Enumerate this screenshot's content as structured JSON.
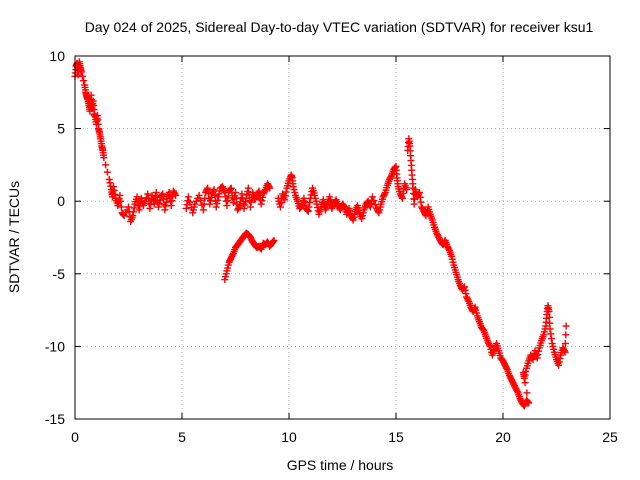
{
  "chart_data": {
    "type": "scatter",
    "title": "Day 024 of 2025, Sidereal Day-to-day VTEC variation (SDTVAR) for receiver ksu1",
    "xlabel": "GPS time / hours",
    "ylabel": "SDTVAR / TECUs",
    "xlim": [
      0,
      25
    ],
    "ylim": [
      -15,
      10
    ],
    "xticks": [
      0,
      5,
      10,
      15,
      20,
      25
    ],
    "yticks": [
      10,
      5,
      0,
      -5,
      -10,
      -15
    ],
    "grid": true,
    "marker": "+",
    "series": [
      {
        "name": "SDTVAR",
        "color": "#ff0000",
        "points": [
          [
            0.0,
            8.6
          ],
          [
            0.05,
            9.3
          ],
          [
            0.1,
            9.5
          ],
          [
            0.15,
            8.7
          ],
          [
            0.2,
            9.6
          ],
          [
            0.25,
            9.2
          ],
          [
            0.3,
            8.9
          ],
          [
            0.45,
            8.0
          ],
          [
            0.5,
            7.5
          ],
          [
            0.55,
            7.2
          ],
          [
            0.6,
            7.0
          ],
          [
            0.65,
            6.6
          ],
          [
            0.7,
            6.2
          ],
          [
            0.75,
            7.3
          ],
          [
            0.8,
            6.4
          ],
          [
            0.85,
            6.9
          ],
          [
            0.9,
            6.0
          ],
          [
            0.95,
            5.8
          ],
          [
            1.0,
            5.3
          ],
          [
            1.05,
            5.9
          ],
          [
            1.1,
            5.0
          ],
          [
            1.15,
            4.7
          ],
          [
            1.2,
            4.3
          ],
          [
            1.25,
            3.8
          ],
          [
            1.3,
            3.5
          ],
          [
            1.35,
            3.0
          ],
          [
            1.6,
            1.5
          ],
          [
            1.7,
            0.8
          ],
          [
            1.75,
            0.3
          ],
          [
            1.8,
            1.0
          ],
          [
            1.9,
            0.2
          ],
          [
            2.0,
            -0.3
          ],
          [
            2.1,
            0.4
          ],
          [
            2.2,
            -0.8
          ],
          [
            2.3,
            -1.0
          ],
          [
            2.5,
            -0.4
          ],
          [
            2.6,
            -1.4
          ],
          [
            2.7,
            -1.0
          ],
          [
            2.8,
            -0.2
          ],
          [
            2.9,
            0.3
          ],
          [
            3.0,
            -0.6
          ],
          [
            3.1,
            0.2
          ],
          [
            3.2,
            -0.3
          ],
          [
            3.4,
            0.5
          ],
          [
            3.5,
            -0.5
          ],
          [
            3.6,
            0.4
          ],
          [
            3.7,
            -0.2
          ],
          [
            3.8,
            0.6
          ],
          [
            3.9,
            -0.4
          ],
          [
            4.0,
            0.3
          ],
          [
            4.1,
            0.5
          ],
          [
            4.2,
            -0.6
          ],
          [
            4.3,
            0.2
          ],
          [
            4.4,
            0.6
          ],
          [
            4.5,
            -0.3
          ],
          [
            4.6,
            0.7
          ],
          [
            4.7,
            0.4
          ],
          [
            5.2,
            -0.5
          ],
          [
            5.3,
            0.3
          ],
          [
            5.5,
            -0.8
          ],
          [
            5.6,
            -0.2
          ],
          [
            5.8,
            0.4
          ],
          [
            6.0,
            -0.6
          ],
          [
            6.1,
            0.6
          ],
          [
            6.2,
            0.9
          ],
          [
            6.3,
            -0.2
          ],
          [
            6.4,
            0.5
          ],
          [
            6.5,
            0.8
          ],
          [
            6.6,
            -0.4
          ],
          [
            6.7,
            0.3
          ],
          [
            6.8,
            0.9
          ],
          [
            6.9,
            1.0
          ],
          [
            7.0,
            0.6
          ],
          [
            7.1,
            -0.3
          ],
          [
            7.2,
            0.7
          ],
          [
            7.3,
            0.9
          ],
          [
            7.4,
            -0.1
          ],
          [
            7.5,
            0.6
          ],
          [
            7.6,
            -0.6
          ],
          [
            7.7,
            -0.3
          ],
          [
            7.8,
            0.5
          ],
          [
            7.9,
            -0.5
          ],
          [
            8.0,
            0.2
          ],
          [
            8.1,
            0.9
          ],
          [
            8.2,
            -0.4
          ],
          [
            8.3,
            0.6
          ],
          [
            8.4,
            0.1
          ],
          [
            8.5,
            0.4
          ],
          [
            8.6,
            0.7
          ],
          [
            8.7,
            -0.2
          ],
          [
            8.8,
            0.5
          ],
          [
            8.9,
            0.8
          ],
          [
            9.0,
            1.2
          ],
          [
            9.1,
            0.9
          ],
          [
            7.0,
            -5.4
          ],
          [
            7.1,
            -4.8
          ],
          [
            7.2,
            -4.2
          ],
          [
            7.3,
            -3.9
          ],
          [
            7.4,
            -3.6
          ],
          [
            7.5,
            -3.2
          ],
          [
            7.6,
            -3.0
          ],
          [
            7.7,
            -2.8
          ],
          [
            7.8,
            -2.6
          ],
          [
            7.9,
            -2.4
          ],
          [
            8.0,
            -2.2
          ],
          [
            8.1,
            -2.3
          ],
          [
            8.2,
            -2.5
          ],
          [
            8.3,
            -2.8
          ],
          [
            8.4,
            -3.0
          ],
          [
            8.5,
            -3.2
          ],
          [
            8.6,
            -3.1
          ],
          [
            8.7,
            -3.3
          ],
          [
            8.8,
            -2.9
          ],
          [
            8.9,
            -3.0
          ],
          [
            9.0,
            -2.8
          ],
          [
            9.1,
            -3.1
          ],
          [
            9.2,
            -2.9
          ],
          [
            9.3,
            -2.7
          ],
          [
            9.5,
            0.2
          ],
          [
            9.6,
            -0.4
          ],
          [
            9.7,
            0.5
          ],
          [
            9.8,
            0.1
          ],
          [
            9.9,
            0.9
          ],
          [
            10.0,
            1.4
          ],
          [
            10.1,
            1.8
          ],
          [
            10.15,
            1.6
          ],
          [
            10.2,
            1.0
          ],
          [
            10.3,
            0.4
          ],
          [
            10.4,
            0.0
          ],
          [
            10.5,
            -0.5
          ],
          [
            10.6,
            -0.3
          ],
          [
            10.7,
            0.2
          ],
          [
            10.8,
            -0.5
          ],
          [
            10.9,
            -0.7
          ],
          [
            11.0,
            0.2
          ],
          [
            11.1,
            0.9
          ],
          [
            11.2,
            0.4
          ],
          [
            11.3,
            -0.2
          ],
          [
            11.4,
            -0.9
          ],
          [
            11.5,
            -0.4
          ],
          [
            11.6,
            0.1
          ],
          [
            11.7,
            -0.6
          ],
          [
            11.8,
            -0.2
          ],
          [
            11.9,
            0.3
          ],
          [
            12.0,
            -0.5
          ],
          [
            12.1,
            -0.2
          ],
          [
            12.2,
            0.1
          ],
          [
            12.3,
            -0.3
          ],
          [
            12.4,
            -0.6
          ],
          [
            12.5,
            -0.2
          ],
          [
            12.6,
            -0.4
          ],
          [
            12.7,
            -0.9
          ],
          [
            12.8,
            -0.5
          ],
          [
            12.9,
            -1.0
          ],
          [
            13.0,
            -1.3
          ],
          [
            13.1,
            -0.7
          ],
          [
            13.2,
            -0.3
          ],
          [
            13.3,
            -0.8
          ],
          [
            13.4,
            -1.2
          ],
          [
            13.5,
            -0.6
          ],
          [
            13.6,
            -0.2
          ],
          [
            13.7,
            0.0
          ],
          [
            13.8,
            -0.4
          ],
          [
            13.9,
            0.3
          ],
          [
            14.1,
            -0.5
          ],
          [
            14.2,
            -0.8
          ],
          [
            14.3,
            -0.2
          ],
          [
            14.4,
            0.3
          ],
          [
            14.5,
            0.6
          ],
          [
            14.6,
            1.1
          ],
          [
            14.7,
            1.5
          ],
          [
            14.8,
            1.8
          ],
          [
            14.9,
            2.2
          ],
          [
            15.0,
            2.4
          ],
          [
            15.05,
            1.6
          ],
          [
            15.1,
            1.0
          ],
          [
            15.2,
            0.5
          ],
          [
            15.3,
            0.2
          ],
          [
            15.4,
            1.2
          ],
          [
            15.5,
            0.8
          ],
          [
            15.55,
            3.5
          ],
          [
            15.6,
            4.3
          ],
          [
            15.65,
            3.8
          ],
          [
            15.7,
            2.8
          ],
          [
            15.75,
            1.8
          ],
          [
            15.8,
            0.9
          ],
          [
            15.85,
            -0.2
          ],
          [
            15.9,
            0.8
          ],
          [
            16.0,
            0.3
          ],
          [
            16.1,
            0.6
          ],
          [
            16.2,
            -0.4
          ],
          [
            16.3,
            -0.7
          ],
          [
            16.4,
            -1.0
          ],
          [
            16.5,
            -0.4
          ],
          [
            16.6,
            -0.9
          ],
          [
            16.7,
            -1.3
          ],
          [
            16.8,
            -1.8
          ],
          [
            16.9,
            -2.2
          ],
          [
            17.0,
            -2.5
          ],
          [
            17.1,
            -2.8
          ],
          [
            17.2,
            -3.0
          ],
          [
            17.3,
            -2.7
          ],
          [
            17.4,
            -3.1
          ],
          [
            17.5,
            -3.4
          ],
          [
            17.6,
            -3.8
          ],
          [
            17.7,
            -4.4
          ],
          [
            17.8,
            -4.9
          ],
          [
            17.9,
            -5.4
          ],
          [
            18.0,
            -5.8
          ],
          [
            18.1,
            -6.1
          ],
          [
            18.2,
            -5.9
          ],
          [
            18.3,
            -6.6
          ],
          [
            18.4,
            -6.9
          ],
          [
            18.5,
            -7.3
          ],
          [
            18.6,
            -7.6
          ],
          [
            18.7,
            -7.3
          ],
          [
            18.8,
            -7.9
          ],
          [
            18.9,
            -8.3
          ],
          [
            19.0,
            -8.7
          ],
          [
            19.1,
            -8.9
          ],
          [
            19.2,
            -9.3
          ],
          [
            19.3,
            -9.7
          ],
          [
            19.4,
            -10.0
          ],
          [
            19.5,
            -10.6
          ],
          [
            19.6,
            -10.2
          ],
          [
            19.7,
            -9.8
          ],
          [
            19.8,
            -10.3
          ],
          [
            19.9,
            -10.8
          ],
          [
            20.0,
            -11.0
          ],
          [
            20.1,
            -11.3
          ],
          [
            20.2,
            -11.6
          ],
          [
            20.3,
            -12.0
          ],
          [
            20.4,
            -12.3
          ],
          [
            20.5,
            -12.6
          ],
          [
            20.6,
            -12.9
          ],
          [
            20.7,
            -13.2
          ],
          [
            20.8,
            -13.6
          ],
          [
            20.9,
            -13.9
          ],
          [
            21.0,
            -14.1
          ],
          [
            21.1,
            -13.7
          ],
          [
            21.2,
            -13.9
          ],
          [
            20.95,
            -11.8
          ],
          [
            21.0,
            -12.2
          ],
          [
            21.1,
            -11.5
          ],
          [
            21.2,
            -11.0
          ],
          [
            21.3,
            -10.6
          ],
          [
            21.4,
            -10.9
          ],
          [
            21.5,
            -10.3
          ],
          [
            21.6,
            -10.8
          ],
          [
            21.7,
            -10.1
          ],
          [
            21.8,
            -9.6
          ],
          [
            21.9,
            -9.2
          ],
          [
            22.0,
            -8.6
          ],
          [
            22.05,
            -7.8
          ],
          [
            22.1,
            -7.2
          ],
          [
            22.15,
            -7.6
          ],
          [
            22.2,
            -8.8
          ],
          [
            22.3,
            -9.8
          ],
          [
            22.4,
            -10.4
          ],
          [
            22.5,
            -10.9
          ],
          [
            22.6,
            -11.3
          ],
          [
            22.7,
            -10.6
          ],
          [
            22.8,
            -10.1
          ],
          [
            22.9,
            -10.4
          ],
          [
            22.95,
            -8.6
          ]
        ]
      }
    ]
  }
}
